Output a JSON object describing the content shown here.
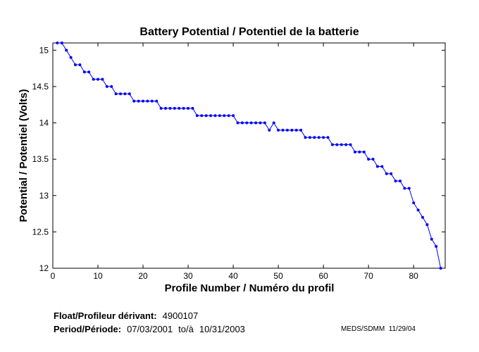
{
  "chart_data": {
    "type": "line",
    "title": "Battery Potential / Potentiel de la batterie",
    "xlabel": "Profile Number / Numéro du profil",
    "ylabel": "Potential / Potentiel (Volts)",
    "xlim": [
      0,
      87
    ],
    "ylim": [
      12,
      15.1
    ],
    "x_ticks": [
      0,
      10,
      20,
      30,
      40,
      50,
      60,
      70,
      80
    ],
    "y_ticks": [
      12,
      12.5,
      13,
      13.5,
      14,
      14.5,
      15
    ],
    "y_tick_labels": [
      "12",
      "12.5",
      "13",
      "13.5",
      "14",
      "14.5",
      "15"
    ],
    "grid": false,
    "series": [
      {
        "color": "#0000ff",
        "marker": "dot",
        "x": [
          1,
          2,
          3,
          4,
          5,
          6,
          7,
          8,
          9,
          10,
          11,
          12,
          13,
          14,
          15,
          16,
          17,
          18,
          19,
          20,
          21,
          22,
          23,
          24,
          25,
          26,
          27,
          28,
          29,
          30,
          31,
          32,
          33,
          34,
          35,
          36,
          37,
          38,
          39,
          40,
          41,
          42,
          43,
          44,
          45,
          46,
          47,
          48,
          49,
          50,
          51,
          52,
          53,
          54,
          55,
          56,
          57,
          58,
          59,
          60,
          61,
          62,
          63,
          64,
          65,
          66,
          67,
          68,
          69,
          70,
          71,
          72,
          73,
          74,
          75,
          76,
          77,
          78,
          79,
          80,
          81,
          82,
          83,
          84,
          85,
          86
        ],
        "y": [
          15.1,
          15.1,
          15.0,
          14.9,
          14.8,
          14.8,
          14.7,
          14.7,
          14.6,
          14.6,
          14.6,
          14.5,
          14.5,
          14.4,
          14.4,
          14.4,
          14.4,
          14.3,
          14.3,
          14.3,
          14.3,
          14.3,
          14.3,
          14.2,
          14.2,
          14.2,
          14.2,
          14.2,
          14.2,
          14.2,
          14.2,
          14.1,
          14.1,
          14.1,
          14.1,
          14.1,
          14.1,
          14.1,
          14.1,
          14.1,
          14.0,
          14.0,
          14.0,
          14.0,
          14.0,
          14.0,
          14.0,
          13.9,
          14.0,
          13.9,
          13.9,
          13.9,
          13.9,
          13.9,
          13.9,
          13.8,
          13.8,
          13.8,
          13.8,
          13.8,
          13.8,
          13.7,
          13.7,
          13.7,
          13.7,
          13.7,
          13.6,
          13.6,
          13.6,
          13.5,
          13.5,
          13.4,
          13.4,
          13.3,
          13.3,
          13.2,
          13.2,
          13.1,
          13.1,
          12.9,
          12.8,
          12.7,
          12.6,
          12.4,
          12.3,
          12.0
        ]
      }
    ]
  },
  "footer": {
    "float_label": "Float/Profileur dérivant:",
    "float_value": "4900107",
    "period_label": "Period/Période:",
    "period_start": "07/03/2001",
    "period_to": "to/à",
    "period_end": "10/31/2003",
    "credit": "MEDS/SDMM  11/29/04"
  },
  "colors": {
    "series": "#0000ff",
    "axes": "#000000",
    "background": "#ffffff"
  }
}
